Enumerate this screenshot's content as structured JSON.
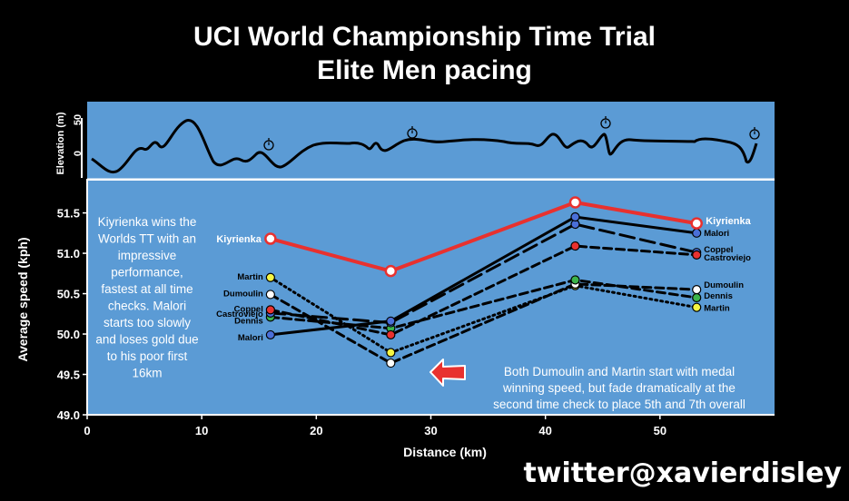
{
  "title_line1": "UCI World Championship Time Trial",
  "title_line2": "Elite Men pacing",
  "twitter": "twitter@xavierdisley",
  "elevation_panel": {
    "ylabel": "Elevation (m)",
    "ticks": [
      "50",
      "0"
    ],
    "timecheck_icon": "stopwatch-icon"
  },
  "annotations": {
    "left": [
      "Kiyrienka wins the",
      "Worlds TT with an",
      "impressive",
      "performance,",
      "fastest at all time",
      "checks. Malori",
      "starts too slowly",
      "and loses gold due",
      "to his poor first",
      "16km"
    ],
    "right": [
      "Both Dumoulin and Martin start with medal",
      "winning speed, but fade dramatically at the",
      "second time check to place 5th and 7th overall"
    ]
  },
  "colors": {
    "background": "#000000",
    "panel": "#5b9bd5",
    "kiyrienka": "#e8312f",
    "arrow": "#e8312f",
    "text": "#ffffff"
  },
  "chart_data": {
    "type": "line",
    "xlabel": "Distance (km)",
    "ylabel": "Average speed (kph)",
    "xlim": [
      0,
      60
    ],
    "ylim": [
      49.0,
      51.9
    ],
    "xticks": [
      "0",
      "10",
      "20",
      "30",
      "40",
      "50"
    ],
    "yticks": [
      "49.0",
      "49.5",
      "50.0",
      "50.5",
      "51.0",
      "51.5"
    ],
    "x": [
      16,
      26.5,
      42.6,
      53.2
    ],
    "series": [
      {
        "name": "Kiyrienka",
        "values": [
          51.18,
          50.78,
          51.63,
          51.37
        ],
        "color": "#e8312f",
        "marker": "#ffffff",
        "style": "solid"
      },
      {
        "name": "Malori",
        "values": [
          49.99,
          50.16,
          51.45,
          51.25
        ],
        "color": "#000000",
        "marker": "#4a6fd8",
        "style": "solid"
      },
      {
        "name": "Coppel",
        "values": [
          50.3,
          49.99,
          51.09,
          50.98
        ],
        "color": "#000000",
        "marker": "#e8312f",
        "style": "dashed"
      },
      {
        "name": "Castroviejo",
        "values": [
          50.26,
          50.14,
          51.36,
          51.01
        ],
        "color": "#000000",
        "marker": "#4a6fd8",
        "style": "longdash"
      },
      {
        "name": "Dennis",
        "values": [
          50.21,
          50.07,
          50.67,
          50.45
        ],
        "color": "#000000",
        "marker": "#3cb44b",
        "style": "dashed"
      },
      {
        "name": "Dumoulin",
        "values": [
          50.49,
          49.64,
          50.62,
          50.55
        ],
        "color": "#000000",
        "marker": "#ffffff",
        "style": "dashed"
      },
      {
        "name": "Martin",
        "values": [
          50.7,
          49.77,
          50.6,
          50.33
        ],
        "color": "#000000",
        "marker": "#f5f542",
        "style": "dotted"
      }
    ]
  }
}
